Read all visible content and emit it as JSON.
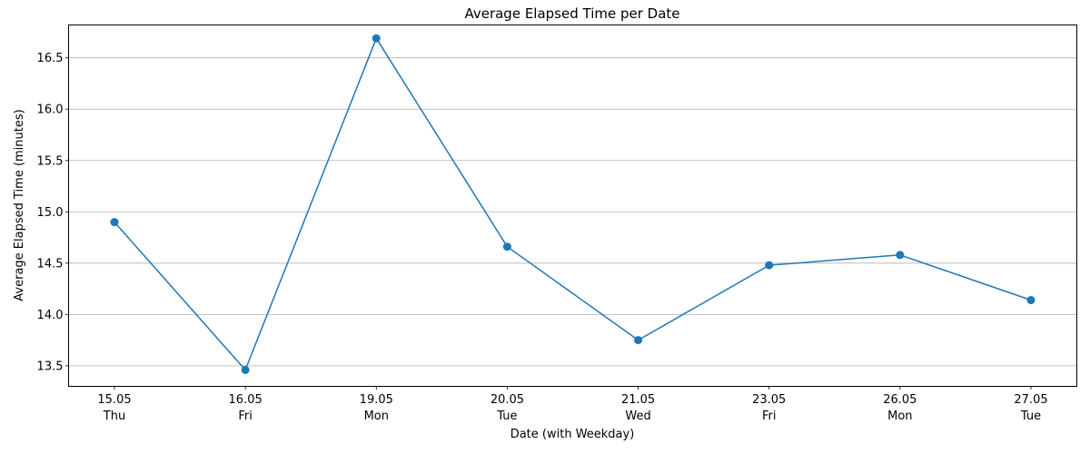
{
  "chart_data": {
    "type": "line",
    "title": "Average Elapsed Time per Date",
    "xlabel": "Date (with Weekday)",
    "ylabel": "Average Elapsed Time (minutes)",
    "categories": [
      {
        "date": "15.05",
        "weekday": "Thu"
      },
      {
        "date": "16.05",
        "weekday": "Fri"
      },
      {
        "date": "19.05",
        "weekday": "Mon"
      },
      {
        "date": "20.05",
        "weekday": "Tue"
      },
      {
        "date": "21.05",
        "weekday": "Wed"
      },
      {
        "date": "23.05",
        "weekday": "Fri"
      },
      {
        "date": "26.05",
        "weekday": "Mon"
      },
      {
        "date": "27.05",
        "weekday": "Tue"
      }
    ],
    "series": [
      {
        "values": [
          14.9,
          13.46,
          16.69,
          14.66,
          13.75,
          14.48,
          14.58,
          14.14
        ],
        "color": "#1f77b4",
        "marker": "circle"
      }
    ],
    "ylim": [
      13.3,
      16.82
    ],
    "yticks": [
      "13.5",
      "14.0",
      "14.5",
      "15.0",
      "15.5",
      "16.0",
      "16.5"
    ],
    "grid": "y-major",
    "legend": "none"
  }
}
